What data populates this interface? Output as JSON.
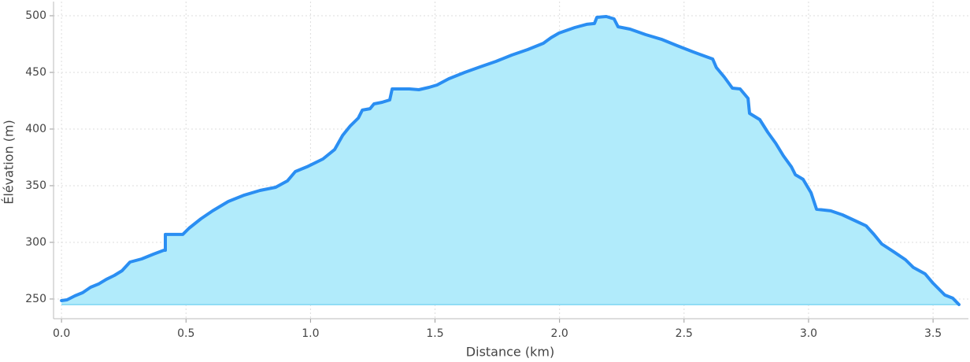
{
  "chart_data": {
    "type": "area",
    "xlabel": "Distance (km)",
    "ylabel": "Élévation (m)",
    "x": [
      0.0,
      0.022,
      0.054,
      0.085,
      0.117,
      0.149,
      0.18,
      0.212,
      0.243,
      0.275,
      0.322,
      0.37,
      0.411,
      0.417,
      0.417,
      0.487,
      0.512,
      0.56,
      0.607,
      0.67,
      0.734,
      0.797,
      0.86,
      0.907,
      0.939,
      0.986,
      1.05,
      1.097,
      1.129,
      1.16,
      1.192,
      1.208,
      1.239,
      1.255,
      1.287,
      1.318,
      1.328,
      1.397,
      1.435,
      1.476,
      1.508,
      1.555,
      1.619,
      1.682,
      1.745,
      1.808,
      1.872,
      1.935,
      1.966,
      1.998,
      2.061,
      2.109,
      2.14,
      2.15,
      2.188,
      2.219,
      2.235,
      2.283,
      2.346,
      2.409,
      2.472,
      2.536,
      2.615,
      2.63,
      2.662,
      2.694,
      2.725,
      2.757,
      2.763,
      2.804,
      2.836,
      2.868,
      2.899,
      2.931,
      2.947,
      2.978,
      3.01,
      3.032,
      3.089,
      3.136,
      3.184,
      3.231,
      3.263,
      3.294,
      3.342,
      3.389,
      3.421,
      3.468,
      3.5,
      3.547,
      3.579,
      3.604
    ],
    "values": [
      248.6,
      249.3,
      252.8,
      255.6,
      260.4,
      263.2,
      267.4,
      270.8,
      275,
      282.6,
      285.4,
      289.6,
      293,
      293,
      307,
      307,
      312.5,
      320.8,
      327.8,
      336.1,
      341.7,
      345.8,
      348.6,
      354.2,
      362.5,
      366.7,
      373.6,
      382,
      394.4,
      402.8,
      409.7,
      416.7,
      418,
      422.2,
      423.6,
      425.7,
      435.4,
      435.4,
      434.7,
      436.8,
      438.9,
      444.4,
      450,
      454.9,
      459.7,
      465.3,
      470.1,
      475.7,
      480.6,
      484.7,
      489.6,
      492.4,
      493.1,
      498.6,
      499.3,
      497.2,
      490.3,
      488.2,
      483.3,
      479.2,
      473.6,
      468.1,
      461.8,
      454.2,
      445.8,
      436.1,
      435.4,
      427.1,
      413.9,
      408.3,
      397.2,
      387.5,
      376.4,
      366.7,
      359.7,
      355.6,
      343.8,
      329.2,
      327.8,
      324.3,
      319.4,
      314.6,
      306.9,
      298.6,
      291.7,
      284.7,
      277.8,
      272.2,
      263.9,
      253.5,
      250.7,
      245.1
    ],
    "color": "#2a8ef2",
    "fill_color": "#b1ebfb",
    "xlim": [
      -0.032,
      3.642
    ],
    "ylim": [
      232.6,
      512.5
    ],
    "xticks": [
      {
        "value": 0,
        "label": "0.0"
      },
      0.5,
      {
        "value": 1,
        "label": "1.0"
      },
      1.5,
      {
        "value": 2,
        "label": "2.0"
      },
      2.5,
      {
        "value": 3,
        "label": "3.0"
      },
      3.5
    ],
    "yticks": [
      250,
      300,
      350,
      400,
      450,
      500
    ],
    "grid": true
  }
}
